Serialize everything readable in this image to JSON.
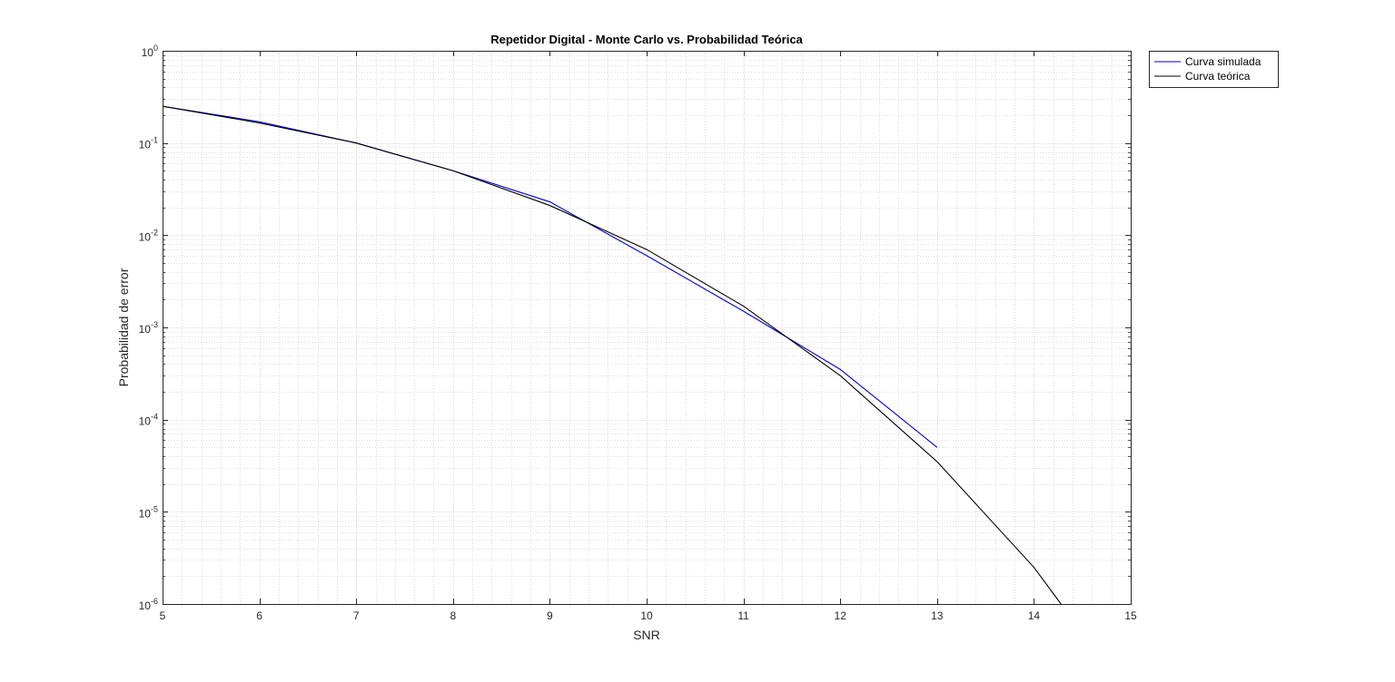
{
  "chart_data": {
    "type": "line",
    "title": "Repetidor Digital - Monte Carlo vs. Probabilidad Teórica",
    "xlabel": "SNR",
    "ylabel": "Probabilidad de error",
    "xlim": [
      5,
      15
    ],
    "ylim": [
      1e-06,
      1
    ],
    "yscale": "log",
    "grid": true,
    "minor_grid": true,
    "legend_position": "outside-top-right",
    "x_ticks": [
      "5",
      "6",
      "7",
      "8",
      "9",
      "10",
      "11",
      "12",
      "13",
      "14",
      "15"
    ],
    "y_ticks": [
      {
        "base": "10",
        "exp": "0"
      },
      {
        "base": "10",
        "exp": "-1"
      },
      {
        "base": "10",
        "exp": "-2"
      },
      {
        "base": "10",
        "exp": "-3"
      },
      {
        "base": "10",
        "exp": "-4"
      },
      {
        "base": "10",
        "exp": "-5"
      },
      {
        "base": "10",
        "exp": "-6"
      }
    ],
    "series": [
      {
        "name": "Curva simulada",
        "color": "#0000cc",
        "x": [
          5,
          6,
          7,
          8,
          9,
          10,
          11,
          12,
          13
        ],
        "y": [
          0.25,
          0.17,
          0.1,
          0.05,
          0.023,
          0.006,
          0.0015,
          0.00035,
          5e-05
        ]
      },
      {
        "name": "Curva teórica",
        "color": "#000000",
        "x": [
          5,
          6,
          7,
          8,
          9,
          10,
          11,
          12,
          13,
          14,
          14.28
        ],
        "y": [
          0.25,
          0.165,
          0.1,
          0.05,
          0.021,
          0.007,
          0.0017,
          0.0003,
          3.5e-05,
          2.5e-06,
          1e-06
        ]
      }
    ]
  }
}
